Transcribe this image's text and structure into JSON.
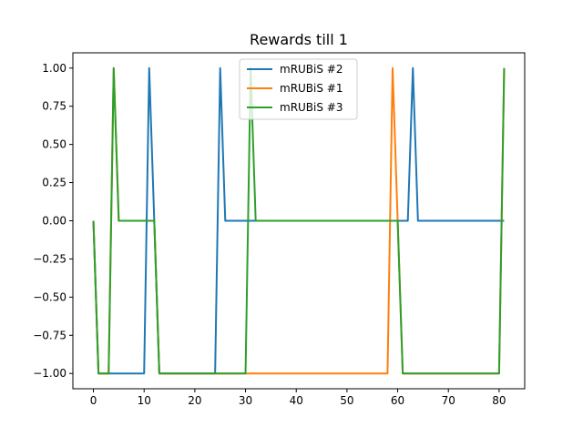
{
  "chart_data": {
    "type": "line",
    "title": "Rewards till 1",
    "xlabel": "",
    "ylabel": "",
    "xlim": [
      -4.05,
      85.05
    ],
    "ylim": [
      -1.1,
      1.1
    ],
    "xticks": [
      0,
      10,
      20,
      30,
      40,
      50,
      60,
      70,
      80
    ],
    "xtick_labels": [
      "0",
      "10",
      "20",
      "30",
      "40",
      "50",
      "60",
      "70",
      "80"
    ],
    "yticks": [
      -1.0,
      -0.75,
      -0.5,
      -0.25,
      0.0,
      0.25,
      0.5,
      0.75,
      1.0
    ],
    "ytick_labels": [
      "−1.00",
      "−0.75",
      "−0.50",
      "−0.25",
      "0.00",
      "0.25",
      "0.50",
      "0.75",
      "1.00"
    ],
    "grid": false,
    "legend_position": "top-center",
    "series": [
      {
        "name": "mRUBiS #2",
        "color": "#1f77b4",
        "points": [
          [
            0,
            0
          ],
          [
            1,
            -1
          ],
          [
            10,
            -1
          ],
          [
            11,
            1
          ],
          [
            12,
            0
          ],
          [
            13,
            -1
          ],
          [
            24,
            -1
          ],
          [
            25,
            1
          ],
          [
            26,
            0
          ],
          [
            62,
            0
          ],
          [
            63,
            1
          ],
          [
            64,
            0
          ],
          [
            81,
            0
          ]
        ]
      },
      {
        "name": "mRUBiS #1",
        "color": "#ff7f0e",
        "points": [
          [
            0,
            0
          ],
          [
            1,
            -1
          ],
          [
            3,
            -1
          ],
          [
            4,
            1
          ],
          [
            5,
            0
          ],
          [
            12,
            0
          ],
          [
            13,
            -1
          ],
          [
            58,
            -1
          ],
          [
            59,
            1
          ],
          [
            60,
            0
          ],
          [
            61,
            -1
          ],
          [
            80,
            -1
          ],
          [
            81,
            1
          ]
        ]
      },
      {
        "name": "mRUBiS #3",
        "color": "#2ca02c",
        "points": [
          [
            0,
            0
          ],
          [
            1,
            -1
          ],
          [
            3,
            -1
          ],
          [
            4,
            1
          ],
          [
            5,
            0
          ],
          [
            12,
            0
          ],
          [
            13,
            -1
          ],
          [
            30,
            -1
          ],
          [
            31,
            1
          ],
          [
            32,
            0
          ],
          [
            60,
            0
          ],
          [
            61,
            -1
          ],
          [
            80,
            -1
          ],
          [
            81,
            1
          ]
        ]
      }
    ]
  }
}
